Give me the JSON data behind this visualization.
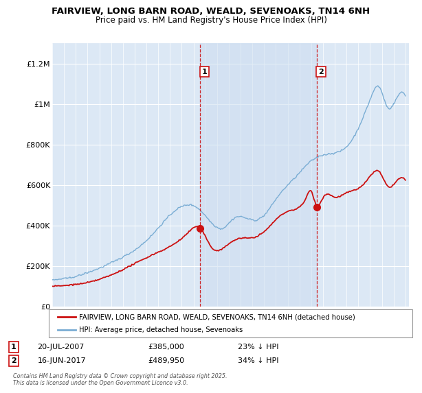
{
  "title": "FAIRVIEW, LONG BARN ROAD, WEALD, SEVENOAKS, TN14 6NH",
  "subtitle": "Price paid vs. HM Land Registry's House Price Index (HPI)",
  "ylabel_ticks": [
    "£0",
    "£200K",
    "£400K",
    "£600K",
    "£800K",
    "£1M",
    "£1.2M"
  ],
  "ytick_vals": [
    0,
    200000,
    400000,
    600000,
    800000,
    1000000,
    1200000
  ],
  "ylim": [
    0,
    1300000
  ],
  "background_color": "#dce8f5",
  "hpi_color": "#7aadd4",
  "price_color": "#cc1111",
  "marker1_price": 385000,
  "marker2_price": 489950,
  "marker1_year": 2007.55,
  "marker2_year": 2017.45,
  "legend_line1": "FAIRVIEW, LONG BARN ROAD, WEALD, SEVENOAKS, TN14 6NH (detached house)",
  "legend_line2": "HPI: Average price, detached house, Sevenoaks",
  "vline_color": "#cc1111",
  "span_color": "#ccddf0",
  "copyright": "Contains HM Land Registry data © Crown copyright and database right 2025.\nThis data is licensed under the Open Government Licence v3.0."
}
